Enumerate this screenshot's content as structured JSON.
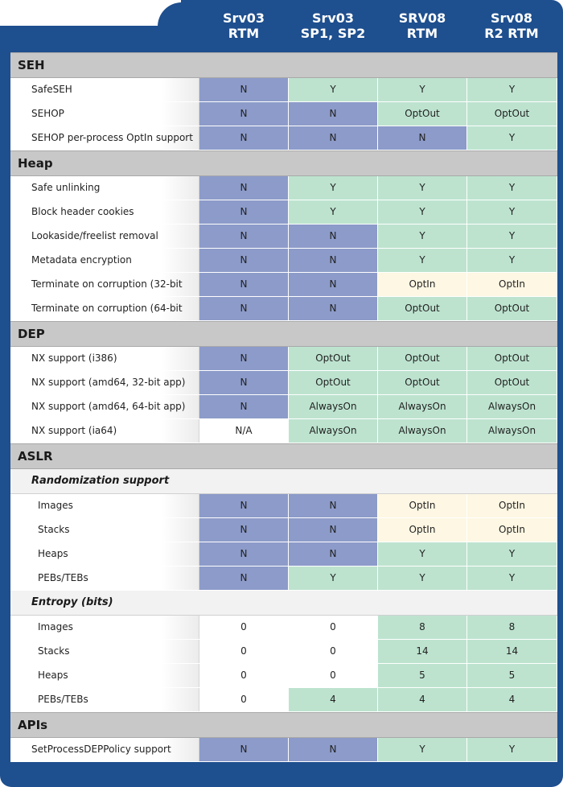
{
  "columns": [
    [
      "Srv03",
      "RTM"
    ],
    [
      "Srv03",
      "SP1, SP2"
    ],
    [
      "SRV08",
      "RTM"
    ],
    [
      "Srv08",
      "R2 RTM"
    ]
  ],
  "rows": [
    {
      "kind": "section",
      "label": "SEH"
    },
    {
      "kind": "data",
      "label": "SafeSEH",
      "values": [
        "N",
        "Y",
        "Y",
        "Y"
      ]
    },
    {
      "kind": "data",
      "label": "SEHOP",
      "values": [
        "N",
        "N",
        "OptOut",
        "OptOut"
      ]
    },
    {
      "kind": "data",
      "label": "SEHOP per-process OptIn support",
      "values": [
        "N",
        "N",
        "N",
        "Y"
      ]
    },
    {
      "kind": "section",
      "label": "Heap"
    },
    {
      "kind": "data",
      "label": "Safe unlinking",
      "values": [
        "N",
        "Y",
        "Y",
        "Y"
      ]
    },
    {
      "kind": "data",
      "label": "Block header cookies",
      "values": [
        "N",
        "Y",
        "Y",
        "Y"
      ]
    },
    {
      "kind": "data",
      "label": "Lookaside/freelist removal",
      "values": [
        "N",
        "N",
        "Y",
        "Y"
      ]
    },
    {
      "kind": "data",
      "label": "Metadata encryption",
      "values": [
        "N",
        "N",
        "Y",
        "Y"
      ]
    },
    {
      "kind": "data",
      "label": "Terminate on corruption (32-bit app)",
      "values": [
        "N",
        "N",
        "OptIn",
        "OptIn"
      ]
    },
    {
      "kind": "data",
      "label": "Terminate on corruption (64-bit app)",
      "values": [
        "N",
        "N",
        "OptOut",
        "OptOut"
      ]
    },
    {
      "kind": "section",
      "label": "DEP"
    },
    {
      "kind": "data",
      "label": "NX support (i386)",
      "values": [
        "N",
        "OptOut",
        "OptOut",
        "OptOut"
      ]
    },
    {
      "kind": "data",
      "label": "NX support (amd64, 32-bit app)",
      "values": [
        "N",
        "OptOut",
        "OptOut",
        "OptOut"
      ]
    },
    {
      "kind": "data",
      "label": "NX support (amd64, 64-bit app)",
      "values": [
        "N",
        "AlwaysOn",
        "AlwaysOn",
        "AlwaysOn"
      ]
    },
    {
      "kind": "data",
      "label": "NX support (ia64)",
      "values": [
        "N/A",
        "AlwaysOn",
        "AlwaysOn",
        "AlwaysOn"
      ]
    },
    {
      "kind": "section",
      "label": "ASLR"
    },
    {
      "kind": "subsection",
      "label": "Randomization support"
    },
    {
      "kind": "data",
      "indent": true,
      "label": "Images",
      "values": [
        "N",
        "N",
        "OptIn",
        "OptIn"
      ]
    },
    {
      "kind": "data",
      "indent": true,
      "label": "Stacks",
      "values": [
        "N",
        "N",
        "OptIn",
        "OptIn"
      ]
    },
    {
      "kind": "data",
      "indent": true,
      "label": "Heaps",
      "values": [
        "N",
        "N",
        "Y",
        "Y"
      ]
    },
    {
      "kind": "data",
      "indent": true,
      "label": "PEBs/TEBs",
      "values": [
        "N",
        "Y",
        "Y",
        "Y"
      ]
    },
    {
      "kind": "subsection",
      "label": "Entropy (bits)"
    },
    {
      "kind": "data",
      "indent": true,
      "label": "Images",
      "values": [
        "0",
        "0",
        "8",
        "8"
      ]
    },
    {
      "kind": "data",
      "indent": true,
      "label": "Stacks",
      "values": [
        "0",
        "0",
        "14",
        "14"
      ]
    },
    {
      "kind": "data",
      "indent": true,
      "label": "Heaps",
      "values": [
        "0",
        "0",
        "5",
        "5"
      ]
    },
    {
      "kind": "data",
      "indent": true,
      "label": "PEBs/TEBs",
      "values": [
        "0",
        "4",
        "4",
        "4"
      ]
    },
    {
      "kind": "section",
      "label": "APIs"
    },
    {
      "kind": "data",
      "label": "SetProcessDEPPolicy support",
      "values": [
        "N",
        "N",
        "Y",
        "Y"
      ]
    }
  ],
  "colors": {
    "frame": "#1e4f8e",
    "no": "#8c9bc9",
    "yes": "#bde3cf",
    "optin": "#fdf7e3",
    "section": "#c8c8c8"
  }
}
